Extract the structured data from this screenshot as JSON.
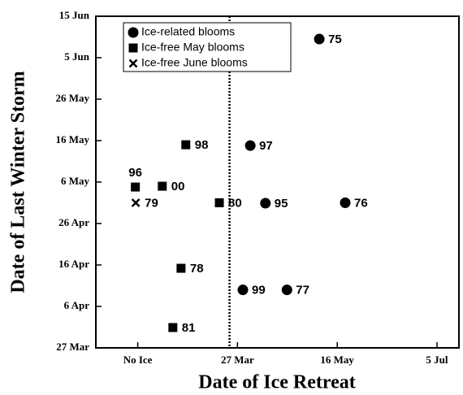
{
  "chart_data": {
    "type": "scatter",
    "x_label": "Date of Ice Retreat",
    "y_label": "Date of Last Winter Storm",
    "xlim": [
      15,
      197
    ],
    "ylim": [
      86,
      166
    ],
    "xticks": [
      {
        "value": 36,
        "label": "No Ice"
      },
      {
        "value": 86,
        "label": "27 Mar"
      },
      {
        "value": 136,
        "label": "16 May"
      },
      {
        "value": 186,
        "label": "5 Jul"
      }
    ],
    "yticks": [
      {
        "value": 86,
        "label": "27 Mar"
      },
      {
        "value": 96,
        "label": "6 Apr"
      },
      {
        "value": 106,
        "label": "16 Apr"
      },
      {
        "value": 116,
        "label": "26 Apr"
      },
      {
        "value": 126,
        "label": "6 May"
      },
      {
        "value": 136,
        "label": "16 May"
      },
      {
        "value": 146,
        "label": "26 May"
      },
      {
        "value": 156,
        "label": "5 Jun"
      },
      {
        "value": 166,
        "label": "15 Jun"
      }
    ],
    "vline": 82,
    "legend": "upper left",
    "series": [
      {
        "name": "Ice-related blooms",
        "marker": "circle",
        "color": "#000000",
        "x": [
          127,
          92.4,
          100,
          140,
          88.7,
          110.8
        ],
        "values": [
          160.5,
          134.8,
          120.9,
          121,
          100,
          100
        ],
        "labels": [
          "75",
          "97",
          "95",
          "76",
          "99",
          "77"
        ]
      },
      {
        "name": "Ice-free May blooms",
        "marker": "square",
        "color": "#000000",
        "x": [
          60.1,
          34.8,
          48.3,
          76.9,
          57.7,
          53.6
        ],
        "values": [
          135,
          124.8,
          125,
          121,
          105.2,
          90.9
        ],
        "labels": [
          "98",
          "96",
          "00",
          "80",
          "78",
          "81"
        ]
      },
      {
        "name": "Ice-free June blooms",
        "marker": "x",
        "color": "#000000",
        "x": [
          35
        ],
        "values": [
          121
        ],
        "labels": [
          "79"
        ]
      }
    ]
  }
}
